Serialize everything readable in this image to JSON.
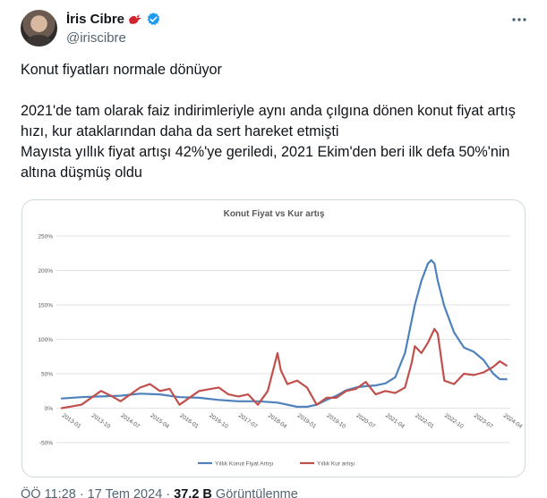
{
  "author": {
    "display_name": "İris Cibre",
    "handle": "@iriscibre"
  },
  "icons": {
    "avatar": "profile-photo",
    "bird": "red-bird-icon",
    "verified": "verified-badge-icon",
    "more": "more-dots-icon"
  },
  "colors": {
    "verified": "#1d9bf0",
    "bird": "#d1242f",
    "housing_series": "#4f81bd",
    "fx_series": "#c0504d"
  },
  "tweet": {
    "text": "Konut fiyatları normale dönüyor\n\n2021'de tam olarak faiz indirimleriyle aynı anda çılgına dönen konut fiyat artış hızı, kur ataklarından daha da sert hareket etmişti\nMayısta yıllık fiyat artışı 42%'ye geriledi, 2021 Ekim'den beri ilk defa 50%'nin altına düşmüş oldu"
  },
  "chart_data": {
    "type": "line",
    "title": "Konut Fiyat vs Kur artış",
    "xlabel": "",
    "ylabel": "",
    "ylim": [
      -50,
      250
    ],
    "yticks": [
      "-50%",
      "0%",
      "50%",
      "100%",
      "150%",
      "200%",
      "250%"
    ],
    "ytick_values": [
      -50,
      0,
      50,
      100,
      150,
      200,
      250
    ],
    "xticks": [
      "2013-01",
      "2013-10",
      "2014-07",
      "2015-04",
      "2016-01",
      "2016-10",
      "2017-07",
      "2018-04",
      "2019-01",
      "2019-10",
      "2020-07",
      "2021-04",
      "2022-01",
      "2022-10",
      "2023-07",
      "2024-04"
    ],
    "grid": true,
    "legend": "bottom",
    "series": [
      {
        "name": "Yıllık Konut Fiyat Artışı",
        "x": [
          "2013-01",
          "2013-07",
          "2014-01",
          "2014-07",
          "2015-01",
          "2015-07",
          "2016-01",
          "2016-07",
          "2017-01",
          "2017-07",
          "2018-01",
          "2018-07",
          "2019-01",
          "2019-04",
          "2019-07",
          "2019-10",
          "2020-01",
          "2020-04",
          "2020-07",
          "2020-10",
          "2021-01",
          "2021-04",
          "2021-07",
          "2021-10",
          "2022-01",
          "2022-03",
          "2022-05",
          "2022-06",
          "2022-07",
          "2022-08",
          "2022-10",
          "2023-01",
          "2023-04",
          "2023-07",
          "2023-10",
          "2024-01",
          "2024-03",
          "2024-05"
        ],
        "values": [
          14,
          16,
          17,
          18,
          21,
          20,
          16,
          15,
          12,
          10,
          10,
          8,
          2,
          2,
          5,
          12,
          18,
          26,
          30,
          32,
          33,
          36,
          45,
          80,
          150,
          185,
          210,
          215,
          210,
          185,
          148,
          110,
          88,
          82,
          70,
          50,
          42,
          42
        ]
      },
      {
        "name": "Yıllık Kur artışı",
        "x": [
          "2013-01",
          "2013-07",
          "2014-01",
          "2014-04",
          "2014-07",
          "2015-01",
          "2015-04",
          "2015-07",
          "2015-10",
          "2016-01",
          "2016-07",
          "2017-01",
          "2017-04",
          "2017-07",
          "2017-10",
          "2018-01",
          "2018-04",
          "2018-07",
          "2018-08",
          "2018-10",
          "2019-01",
          "2019-04",
          "2019-07",
          "2019-10",
          "2020-01",
          "2020-04",
          "2020-07",
          "2020-10",
          "2021-01",
          "2021-04",
          "2021-07",
          "2021-10",
          "2021-12",
          "2022-01",
          "2022-03",
          "2022-05",
          "2022-07",
          "2022-08",
          "2022-10",
          "2023-01",
          "2023-04",
          "2023-07",
          "2023-10",
          "2024-01",
          "2024-03",
          "2024-05"
        ],
        "values": [
          0,
          5,
          25,
          18,
          10,
          30,
          35,
          25,
          28,
          5,
          25,
          30,
          20,
          17,
          20,
          5,
          25,
          80,
          55,
          35,
          40,
          30,
          5,
          15,
          15,
          25,
          28,
          38,
          20,
          25,
          22,
          30,
          65,
          90,
          80,
          95,
          115,
          108,
          40,
          35,
          50,
          48,
          52,
          60,
          68,
          62
        ]
      }
    ]
  },
  "footer": {
    "time": "ÖÖ 11:28 · 17 Tem 2024 ·",
    "views": "37,2 B",
    "views_label": "Görüntülenme"
  }
}
